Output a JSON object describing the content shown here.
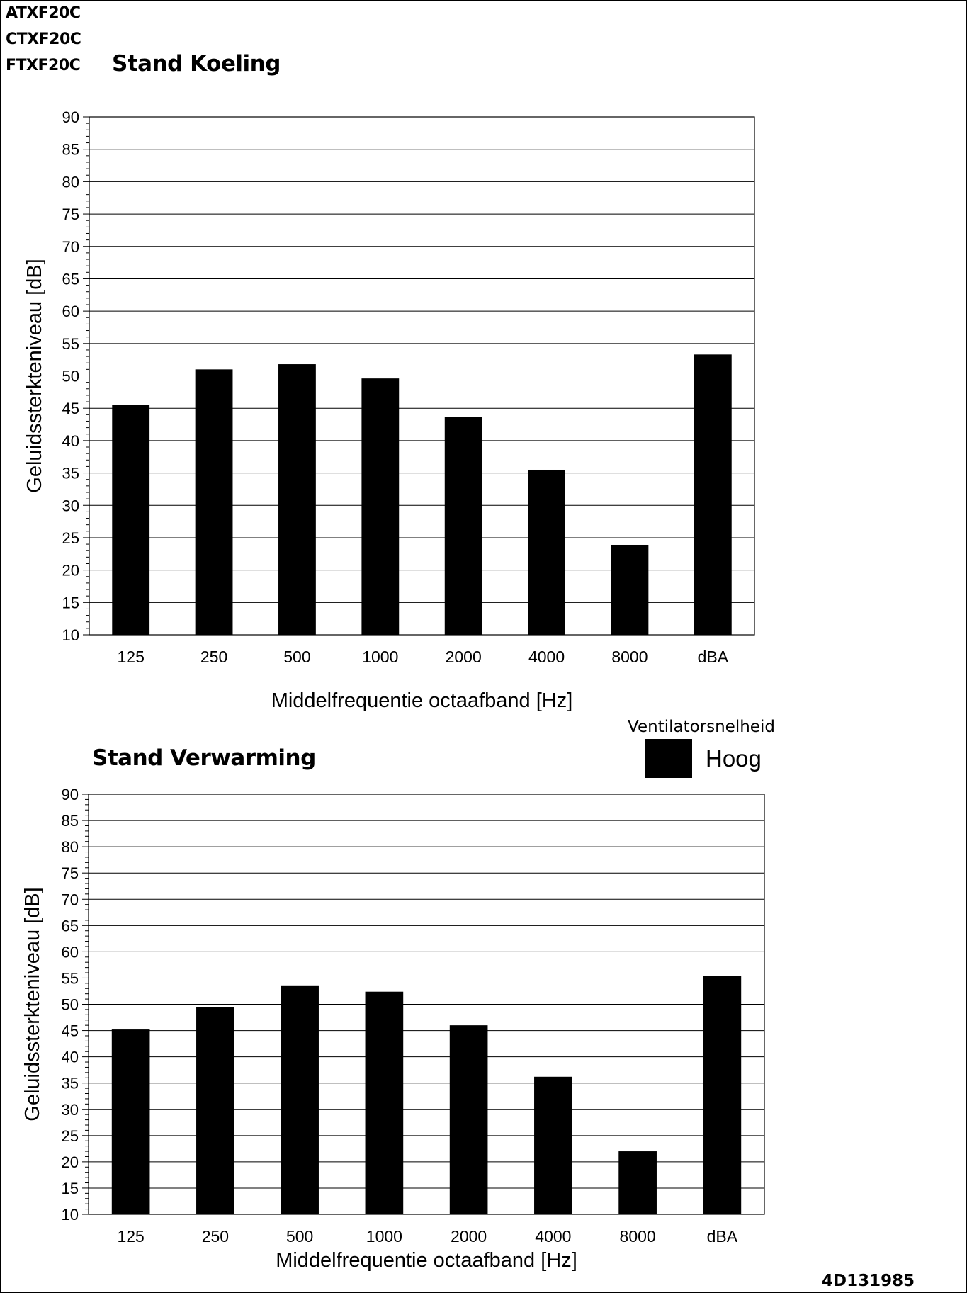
{
  "models": [
    "ATXF20C",
    "CTXF20C",
    "FTXF20C"
  ],
  "legend": {
    "title": "Ventilatorsnelheid",
    "label": "Hoog",
    "color": "#000000"
  },
  "doc_code": "4D131985",
  "chart_data": [
    {
      "type": "bar",
      "title": "Stand Koeling",
      "xlabel": "Middelfrequentie octaafband [Hz]",
      "ylabel": "Geluidssterkteniveau [dB]",
      "categories": [
        "125",
        "250",
        "500",
        "1000",
        "2000",
        "4000",
        "8000",
        "dBA"
      ],
      "series": [
        {
          "name": "Hoog",
          "values": [
            45.5,
            51,
            51.8,
            49.6,
            43.6,
            35.5,
            23.9,
            53.3
          ]
        }
      ],
      "ylim": [
        10,
        90
      ],
      "yticks": [
        10,
        15,
        20,
        25,
        30,
        35,
        40,
        45,
        50,
        55,
        60,
        65,
        70,
        75,
        80,
        85,
        90
      ],
      "grid": true,
      "color": "#000000"
    },
    {
      "type": "bar",
      "title": "Stand Verwarming",
      "xlabel": "Middelfrequentie octaafband [Hz]",
      "ylabel": "Geluidssterkteniveau [dB]",
      "categories": [
        "125",
        "250",
        "500",
        "1000",
        "2000",
        "4000",
        "8000",
        "dBA"
      ],
      "series": [
        {
          "name": "Hoog",
          "values": [
            45.2,
            49.5,
            53.6,
            52.4,
            46,
            36.2,
            22,
            55.4
          ]
        }
      ],
      "ylim": [
        10,
        90
      ],
      "yticks": [
        10,
        15,
        20,
        25,
        30,
        35,
        40,
        45,
        50,
        55,
        60,
        65,
        70,
        75,
        80,
        85,
        90
      ],
      "grid": true,
      "color": "#000000"
    }
  ]
}
